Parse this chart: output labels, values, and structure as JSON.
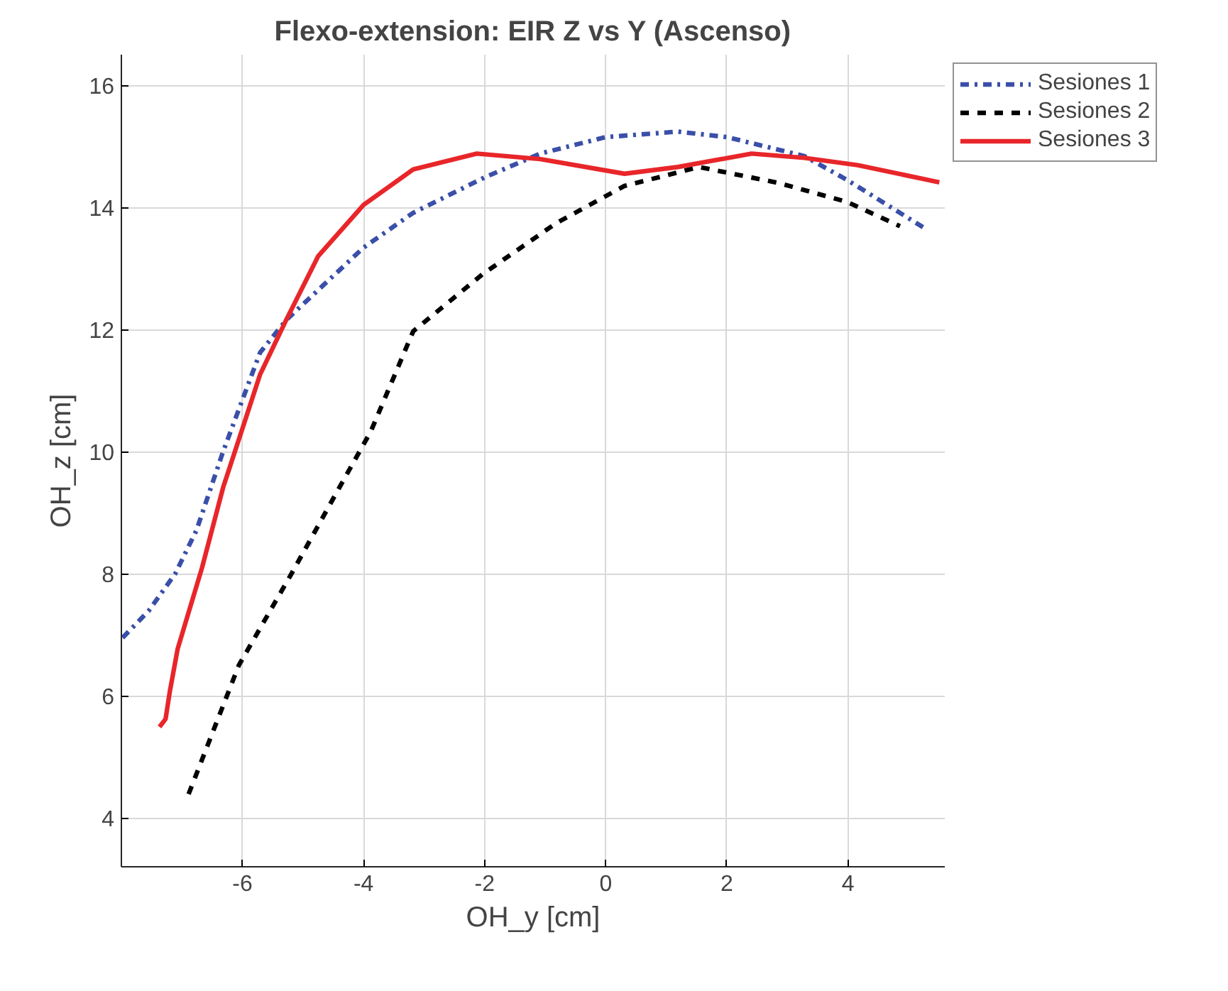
{
  "chart_data": {
    "type": "line",
    "title": "Flexo-extension: EIR Z vs Y (Ascenso)",
    "xlabel": "OH_y [cm]",
    "ylabel": "OH_z [cm]",
    "xlim": [
      -8,
      5.6
    ],
    "ylim": [
      3.2,
      16.5
    ],
    "xticks": [
      -6,
      -4,
      -2,
      0,
      2,
      4
    ],
    "yticks": [
      4,
      6,
      8,
      10,
      12,
      14,
      16
    ],
    "grid": true,
    "legend": "top right",
    "series": [
      {
        "name": "Sesiones 1",
        "color": "#3a4fa8",
        "line_style": "dashdot",
        "x": [
          -7.98,
          -7.55,
          -7.11,
          -6.76,
          -6.32,
          -5.71,
          -5.28,
          -5.1,
          -4,
          -3.18,
          -2,
          -1.08,
          0,
          1.19,
          2,
          3.28,
          4,
          5.28
        ],
        "values": [
          6.95,
          7.39,
          8.0,
          8.71,
          10.0,
          11.62,
          12.15,
          12.32,
          13.34,
          13.91,
          14.49,
          14.88,
          15.15,
          15.24,
          15.15,
          14.84,
          14.44,
          13.65
        ]
      },
      {
        "name": "Sesiones 2",
        "color": "#000000",
        "line_style": "dashed",
        "x": [
          -6.89,
          -6.06,
          -5.19,
          -4.4,
          -3.88,
          -3.18,
          -2.04,
          -0.82,
          0.31,
          1.54,
          2.85,
          3.98,
          4.86
        ],
        "values": [
          4.39,
          6.5,
          8.0,
          9.41,
          10.33,
          11.97,
          12.9,
          13.74,
          14.35,
          14.66,
          14.4,
          14.09,
          13.69
        ]
      },
      {
        "name": "Sesiones 3",
        "color": "#e8262a",
        "line_style": "solid",
        "x": [
          -7.37,
          -7.27,
          -7.2,
          -7.07,
          -6.67,
          -6.32,
          -5.97,
          -5.71,
          -5.28,
          -4.75,
          -4,
          -3.18,
          -2.13,
          -1.08,
          0.31,
          1.19,
          2.41,
          3.28,
          4.16,
          5.51
        ],
        "values": [
          5.49,
          5.62,
          6.07,
          6.77,
          8.09,
          9.41,
          10.47,
          11.26,
          12.15,
          13.2,
          14.04,
          14.62,
          14.88,
          14.79,
          14.55,
          14.66,
          14.88,
          14.81,
          14.69,
          14.41
        ]
      }
    ]
  }
}
